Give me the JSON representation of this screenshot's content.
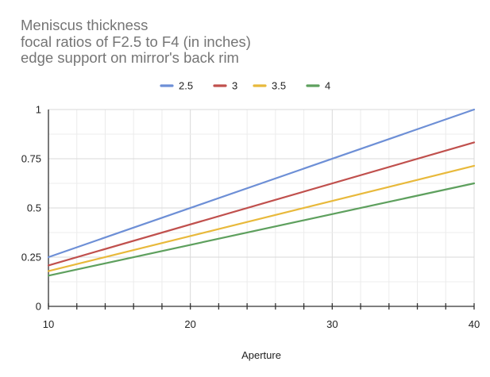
{
  "chart_data": {
    "type": "line",
    "title_lines": [
      "Meniscus thickness",
      "focal ratios of F2.5 to F4 (in inches)",
      "edge support on mirror's back rim"
    ],
    "xlabel": "Aperture",
    "ylabel": "",
    "xlim": [
      10,
      40
    ],
    "ylim": [
      0,
      1
    ],
    "x_ticks": [
      10,
      20,
      30,
      40
    ],
    "y_ticks": [
      0,
      0.25,
      0.5,
      0.75,
      1
    ],
    "y_tick_labels": [
      "0",
      "0.25",
      "0.5",
      "0.75",
      "1"
    ],
    "legend_position": "top",
    "grid": true,
    "x": [
      10,
      40
    ],
    "series": [
      {
        "name": "2.5",
        "color": "#6d8fd6",
        "values": [
          0.25,
          1.0
        ]
      },
      {
        "name": "3",
        "color": "#c0504d",
        "values": [
          0.208,
          0.833
        ]
      },
      {
        "name": "3.5",
        "color": "#e8b93b",
        "values": [
          0.179,
          0.714
        ]
      },
      {
        "name": "4",
        "color": "#5ea05e",
        "values": [
          0.156,
          0.625
        ]
      }
    ]
  }
}
